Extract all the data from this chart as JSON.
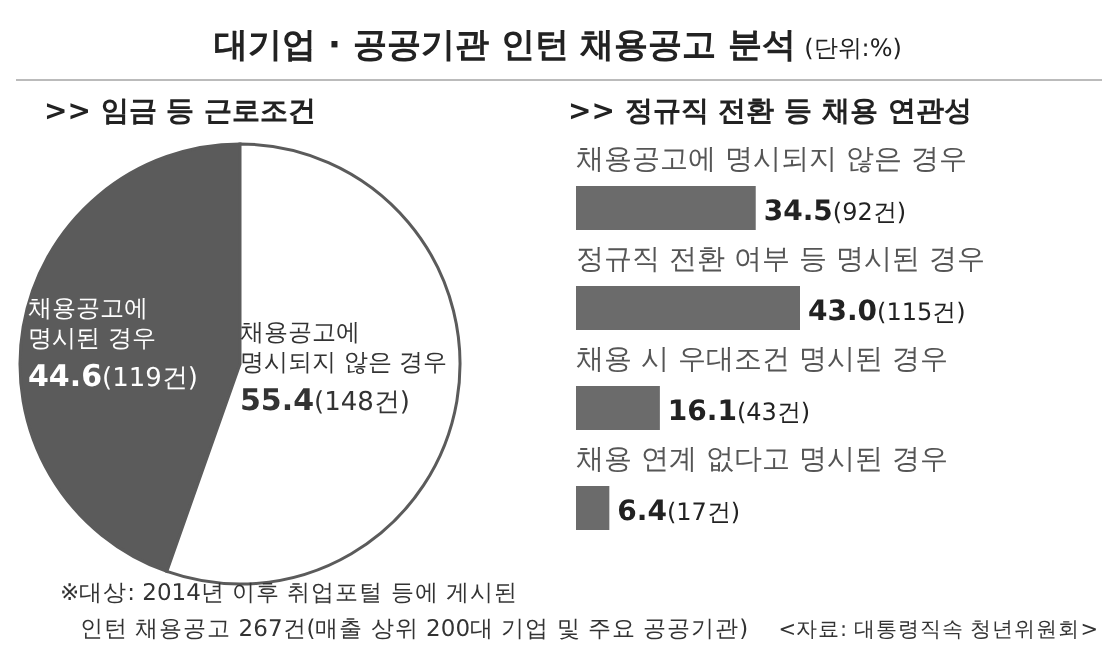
{
  "chart_data": [
    {
      "type": "pie",
      "title": ">> 임금 등 근로조건",
      "annotations": [
        "대기업 · 공공기관 인턴 채용공고 분석",
        "(단위:%)",
        "※대상: 2014년 이후 취업포털 등에 게시된",
        "인턴 채용공고 267건(매출 상위 200대 기업 및 주요 공공기관)"
      ],
      "categories": [
        "채용공고에 명시된 경우",
        "채용공고에 명시되지 않은 경우"
      ],
      "values": [
        44.6,
        55.4
      ],
      "colors": [
        "#5b5b5b",
        "#ffffff"
      ],
      "value_labels": [
        "44.6(119건)",
        "55.4(148건)"
      ]
    },
    {
      "type": "bar",
      "orientation": "horizontal",
      "title": ">> 정규직 전환 등 채용 연관성",
      "annotations": [
        "<자료: 대통령직속 청년위원회>"
      ],
      "categories": [
        "채용공고에 명시되지 않은 경우",
        "정규직 전환 여부 등 명시된 경우",
        "채용 시 우대조건 명시된 경우",
        "채용 연계 없다고 명시된 경우"
      ],
      "values": [
        34.5,
        43.0,
        16.1,
        6.4
      ],
      "color": "#6b6b6b",
      "value_labels": [
        "34.5(92건)",
        "43.0(115건)",
        "16.1(43건)",
        "6.4(17건)"
      ]
    }
  ]
}
